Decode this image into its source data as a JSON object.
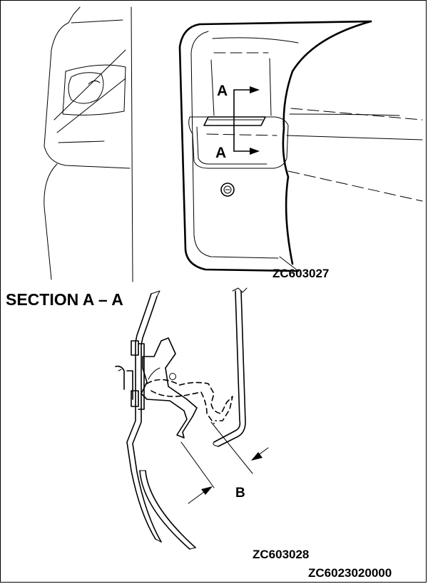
{
  "top_view": {
    "label_a_upper": "A",
    "label_a_lower": "A",
    "figure_code": "ZC603027"
  },
  "section_view": {
    "title": "SECTION A – A",
    "label_b": "B",
    "figure_code": "ZC603028"
  },
  "page_code": "ZC6023020000"
}
